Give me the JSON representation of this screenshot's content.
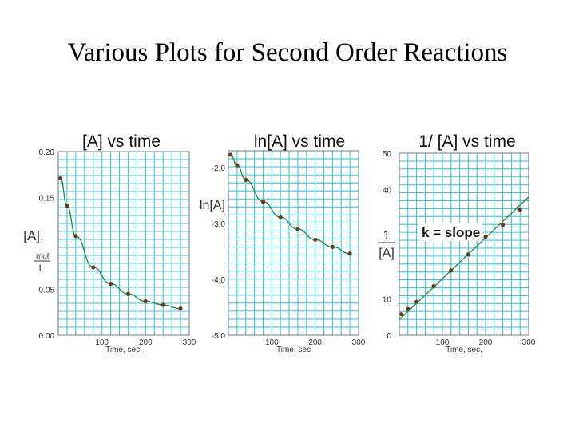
{
  "slide": {
    "title": "Various Plots for Second Order Reactions"
  },
  "chart_data": [
    {
      "type": "scatter",
      "title": "[A]  vs time",
      "xlabel": "Time, sec.",
      "ylabel": "[A],",
      "ylabel_unit_num": "mol",
      "ylabel_unit_den": "L",
      "xlim": [
        0,
        300
      ],
      "ylim": [
        0,
        0.2
      ],
      "xticks": [
        "100",
        "200",
        "300"
      ],
      "yticks": [
        {
          "v": 0.2,
          "label": "0.20"
        },
        {
          "v": 0.15,
          "label": "0.15"
        },
        {
          "v": 0.05,
          "label": "0.05"
        },
        {
          "v": 0.0,
          "label": "0.00"
        }
      ],
      "x": [
        5,
        20,
        40,
        80,
        120,
        160,
        200,
        240,
        280
      ],
      "values": [
        0.171,
        0.141,
        0.108,
        0.074,
        0.056,
        0.045,
        0.037,
        0.033,
        0.029
      ],
      "color": "#1d8a3a",
      "marker_color": "#6b3a12"
    },
    {
      "type": "scatter",
      "title": "ln[A] vs time",
      "xlabel": "Time, sec",
      "ylabel": "ln[A]",
      "xlim": [
        0,
        300
      ],
      "ylim": [
        -5.0,
        -1.7
      ],
      "xticks": [
        "100",
        "200",
        "300"
      ],
      "yticks": [
        {
          "v": -2.0,
          "label": "-2.0"
        },
        {
          "v": -3.0,
          "label": "-3.0"
        },
        {
          "v": -4.0,
          "label": "-4.0"
        },
        {
          "v": -5.0,
          "label": "-5.0"
        }
      ],
      "x": [
        5,
        20,
        40,
        80,
        120,
        160,
        200,
        240,
        280
      ],
      "values": [
        -1.77,
        -1.96,
        -2.22,
        -2.61,
        -2.89,
        -3.1,
        -3.29,
        -3.42,
        -3.54
      ],
      "color": "#1d8a3a",
      "marker_color": "#6b3a12"
    },
    {
      "type": "scatter",
      "title": "1/ [A] vs time",
      "xlabel": "Time, sec.",
      "ylabel_num": "1",
      "ylabel_den": "[A]",
      "annotation": "k = slope",
      "xlim": [
        0,
        300
      ],
      "ylim": [
        0,
        50
      ],
      "xticks": [
        "100",
        "200",
        "300"
      ],
      "yticks": [
        {
          "v": 50,
          "label": "50"
        },
        {
          "v": 40,
          "label": "40"
        },
        {
          "v": 10,
          "label": "10"
        },
        {
          "v": 0,
          "label": "0"
        }
      ],
      "x": [
        5,
        20,
        40,
        80,
        120,
        160,
        200,
        240,
        280
      ],
      "values": [
        5.8,
        7.2,
        9.2,
        13.5,
        17.8,
        22.2,
        27.0,
        30.3,
        34.5
      ],
      "color": "#1d8a3a",
      "marker_color": "#6b3a12"
    }
  ]
}
